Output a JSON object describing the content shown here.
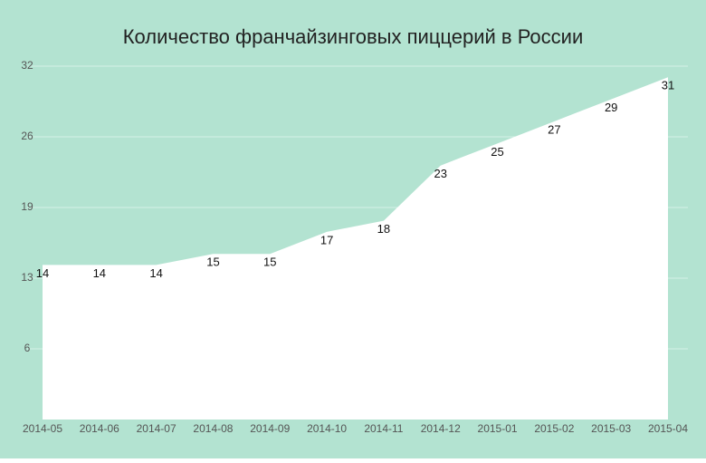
{
  "chart_data": {
    "type": "area",
    "title": "Количество франчайзинговых пиццерий в России",
    "categories": [
      "2014-05",
      "2014-06",
      "2014-07",
      "2014-08",
      "2014-09",
      "2014-10",
      "2014-11",
      "2014-12",
      "2015-01",
      "2015-02",
      "2015-03",
      "2015-04"
    ],
    "values": [
      14,
      14,
      14,
      15,
      15,
      17,
      18,
      23,
      25,
      27,
      29,
      31
    ],
    "color": "#ffffff",
    "background": "#b3e3d1",
    "ylim": [
      0,
      32
    ],
    "yticks": [
      {
        "value": 6.4,
        "label": "6"
      },
      {
        "value": 12.8,
        "label": "13"
      },
      {
        "value": 19.2,
        "label": "19"
      },
      {
        "value": 25.6,
        "label": "26"
      },
      32
    ],
    "grid": true
  }
}
